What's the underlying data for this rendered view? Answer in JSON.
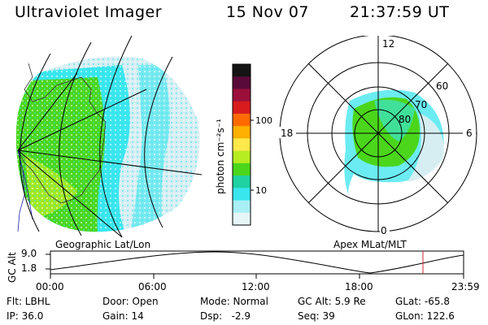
{
  "header": {
    "title": "Ultraviolet Imager",
    "date": "15 Nov 07",
    "time": "21:37:59 UT"
  },
  "colorbar": {
    "label": "photon cm⁻²s⁻¹",
    "ticks": [
      "100",
      "10"
    ],
    "colors": [
      "#141414",
      "#5a0a3a",
      "#9b0f3a",
      "#d81c1c",
      "#ff6a00",
      "#ffb000",
      "#ffe84a",
      "#b6ec22",
      "#4bd61c",
      "#1ed2a2",
      "#3ae6ee",
      "#a8f0f6",
      "#e6f6f8"
    ]
  },
  "geo_panel": {
    "label": "Geographic Lat/Lon"
  },
  "polar_panel": {
    "label": "Apex MLat/MLT",
    "mlt_labels": {
      "top": "12",
      "right": "6",
      "bottom": "0",
      "left": "18"
    },
    "lat_labels": [
      "60",
      "70",
      "80"
    ]
  },
  "altitude_plot": {
    "ylabel": "GC Alt",
    "yticks": [
      "9.0",
      "1.8"
    ],
    "xticks": [
      "00:00",
      "06:00",
      "12:00",
      "18:00",
      "23:59"
    ]
  },
  "info": {
    "flt": "Flt: LBHL",
    "ip": "IP: 36.0",
    "door": "Door: Open",
    "gain": "Gain: 14",
    "mode": "Mode: Normal",
    "dsp": "Dsp:   -2.9",
    "gc_alt": "GC Alt: 5.9 Re",
    "seq": "Seq: 39",
    "glat": "GLat: -65.8",
    "glon": "GLon: 122.6"
  },
  "colors": {
    "green": "#4bd61c",
    "cyan": "#3ae6ee",
    "pale": "#d6eef2",
    "marker": "#c8283a"
  }
}
